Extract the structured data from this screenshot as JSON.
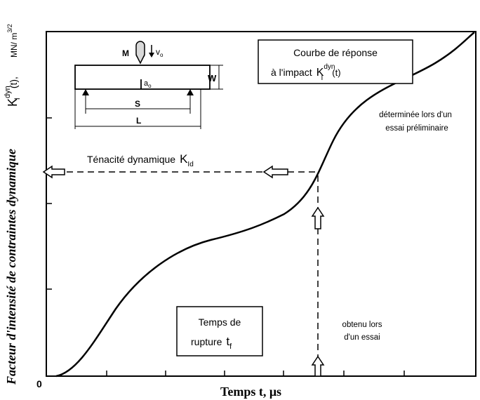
{
  "axes": {
    "y_label": "Facteur d'intensité de contraintes dynamique",
    "y_symbol_main": "K",
    "y_symbol_sup": "dyn",
    "y_symbol_sub": "I",
    "y_symbol_arg": "(t),",
    "y_unit_base": "MN/ m",
    "y_unit_exp": "3/2",
    "x_label": "Temps t,  μs",
    "origin": "0"
  },
  "response_box": {
    "line1": "Courbe de réponse",
    "line2_prefix": "à l'impact",
    "k": "K",
    "k_sup": "dyn",
    "k_sub": "I",
    "k_arg": "(t)"
  },
  "preliminary_note": {
    "line1": "déterminée lors d'un",
    "line2": "essai préliminaire"
  },
  "toughness": {
    "label": "Ténacité dynamique",
    "k": "K",
    "k_sub": "Id"
  },
  "rupture_box": {
    "line1": "Temps de",
    "line2": "rupture",
    "t": "t",
    "t_sub": "f"
  },
  "trial_note": {
    "line1": "obtenu lors",
    "line2": "d'un essai"
  },
  "specimen": {
    "mass": "M",
    "velocity": "v",
    "velocity_sub": "o",
    "crack": "a",
    "crack_sub": "o",
    "width": "W",
    "span": "S",
    "length": "L"
  }
}
